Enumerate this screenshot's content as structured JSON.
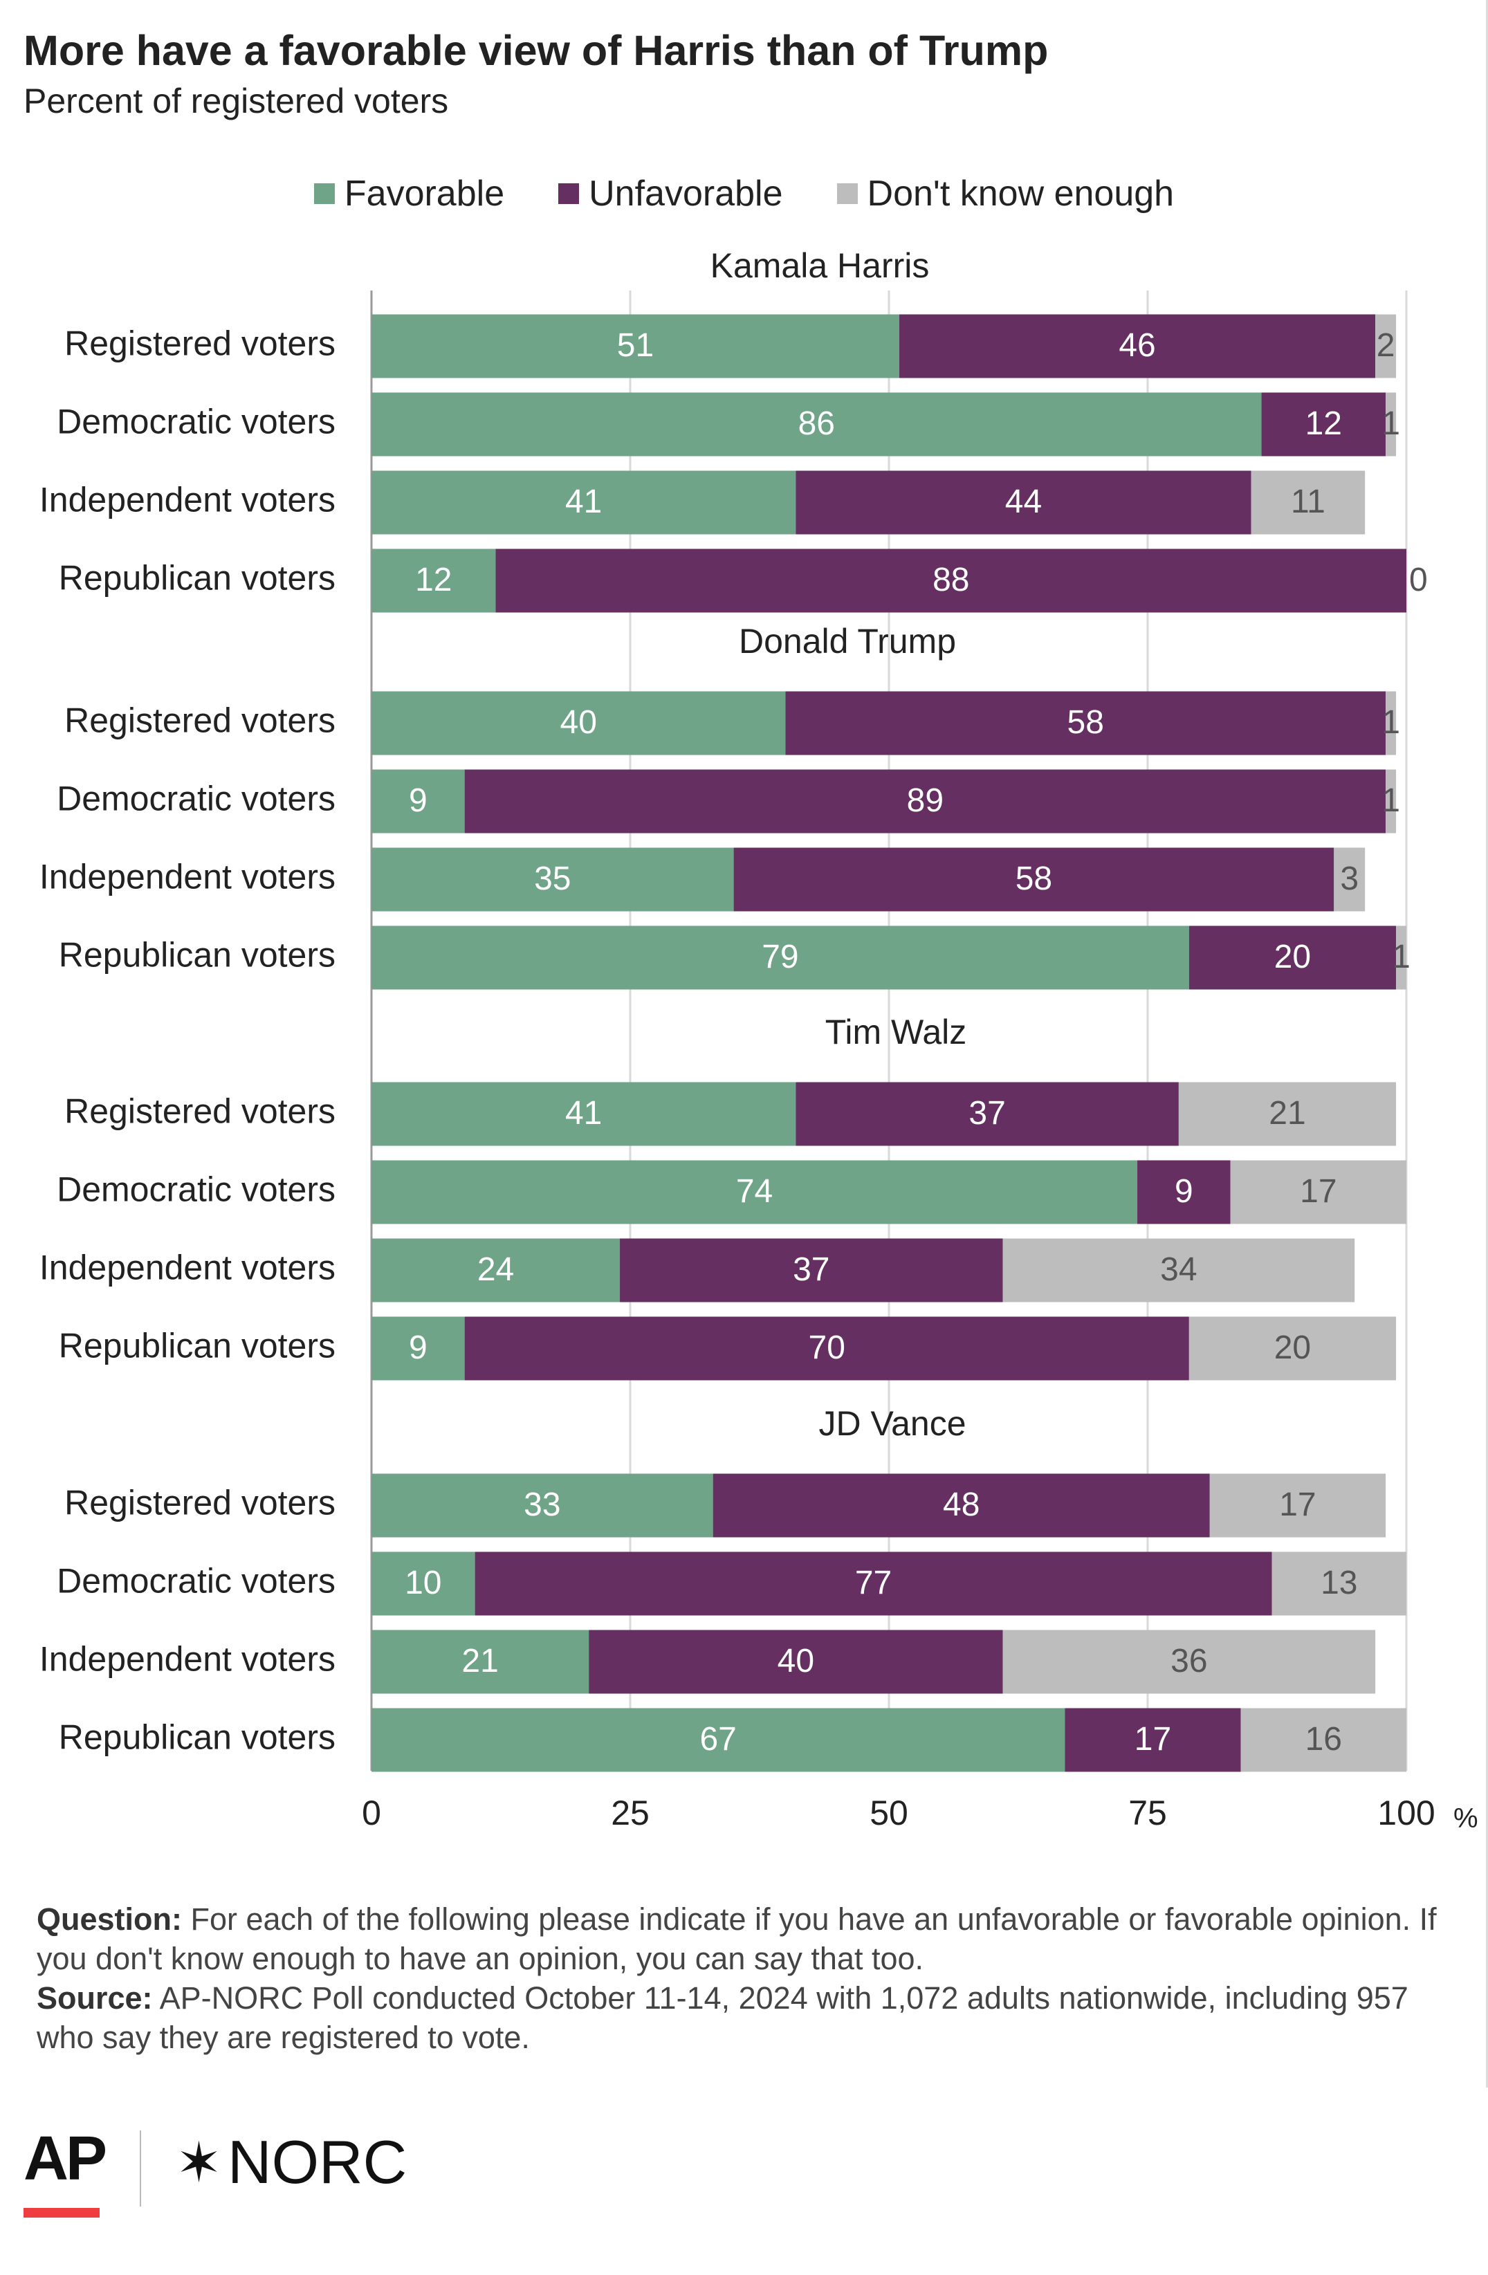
{
  "header": {
    "title": "More have a favorable view of Harris than of Trump",
    "subtitle": "Percent of registered voters"
  },
  "legend": [
    {
      "label": "Favorable",
      "color": "#6fa489"
    },
    {
      "label": "Unfavorable",
      "color": "#652f62"
    },
    {
      "label": "Don't know enough",
      "color": "#bdbdbd"
    }
  ],
  "notes": {
    "question_label": "Question:",
    "question_text": " For each of the following please indicate if you have an unfavorable or favorable opinion. If you don't know enough to have an opinion, you can say that too.",
    "source_label": "Source:",
    "source_text": " AP-NORC Poll conducted October 11-14, 2024 with 1,072 adults nationwide, including 957 who say they are registered to vote."
  },
  "logos": {
    "ap": "AP",
    "norc": "NORC"
  },
  "chart_data": {
    "type": "bar",
    "orientation": "horizontal",
    "stacked": true,
    "xlim": [
      0,
      100
    ],
    "xticks": [
      "0",
      "25",
      "50",
      "75",
      "100"
    ],
    "xunit": "%",
    "grid": true,
    "legend_position": "top",
    "series_names": [
      "Favorable",
      "Unfavorable",
      "Don't know enough"
    ],
    "colors": [
      "#6fa489",
      "#652f62",
      "#bdbdbd"
    ],
    "groups": [
      {
        "name": "Kamala Harris",
        "rows": [
          {
            "label": "Registered voters",
            "values": [
              51,
              46,
              2
            ]
          },
          {
            "label": "Democratic voters",
            "values": [
              86,
              12,
              1
            ]
          },
          {
            "label": "Independent voters",
            "values": [
              41,
              44,
              11
            ]
          },
          {
            "label": "Republican voters",
            "values": [
              12,
              88,
              0
            ]
          }
        ]
      },
      {
        "name": "Donald Trump",
        "rows": [
          {
            "label": "Registered voters",
            "values": [
              40,
              58,
              1
            ]
          },
          {
            "label": "Democratic voters",
            "values": [
              9,
              89,
              1
            ]
          },
          {
            "label": "Independent voters",
            "values": [
              35,
              58,
              3
            ]
          },
          {
            "label": "Republican voters",
            "values": [
              79,
              20,
              1
            ]
          }
        ]
      },
      {
        "name": "Tim Walz",
        "rows": [
          {
            "label": "Registered voters",
            "values": [
              41,
              37,
              21
            ]
          },
          {
            "label": "Democratic voters",
            "values": [
              74,
              9,
              17
            ]
          },
          {
            "label": "Independent voters",
            "values": [
              24,
              37,
              34
            ]
          },
          {
            "label": "Republican voters",
            "values": [
              9,
              70,
              20
            ]
          }
        ]
      },
      {
        "name": "JD Vance",
        "rows": [
          {
            "label": "Registered voters",
            "values": [
              33,
              48,
              17
            ]
          },
          {
            "label": "Democratic voters",
            "values": [
              10,
              77,
              13
            ]
          },
          {
            "label": "Independent voters",
            "values": [
              21,
              40,
              36
            ]
          },
          {
            "label": "Republican voters",
            "values": [
              67,
              17,
              16
            ]
          }
        ]
      }
    ]
  }
}
